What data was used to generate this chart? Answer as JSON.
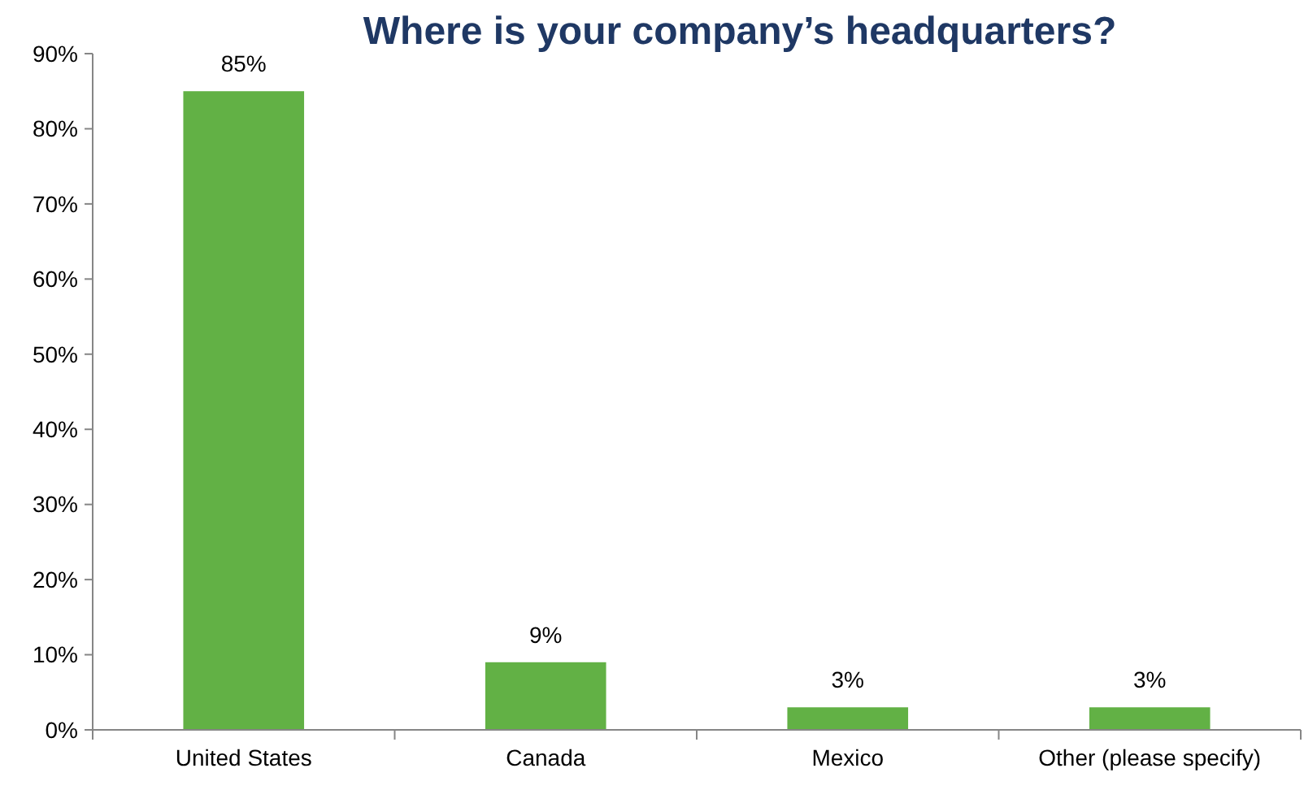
{
  "chart_data": {
    "type": "bar",
    "title": "Where is your company’s headquarters?",
    "categories": [
      "United States",
      "Canada",
      "Mexico",
      "Other (please specify)"
    ],
    "values": [
      85,
      9,
      3,
      3
    ],
    "value_labels": [
      "85%",
      "9%",
      "3%",
      "3%"
    ],
    "color": "#62b145",
    "ylim": [
      0,
      90
    ],
    "yticks": [
      {
        "value": 0,
        "label": "0%"
      },
      {
        "value": 10,
        "label": "10%"
      },
      {
        "value": 20,
        "label": "20%"
      },
      {
        "value": 30,
        "label": "30%"
      },
      {
        "value": 40,
        "label": "40%"
      },
      {
        "value": 50,
        "label": "50%"
      },
      {
        "value": 60,
        "label": "60%"
      },
      {
        "value": 70,
        "label": "70%"
      },
      {
        "value": 80,
        "label": "80%"
      },
      {
        "value": 90,
        "label": "90%"
      }
    ],
    "grid": false
  }
}
